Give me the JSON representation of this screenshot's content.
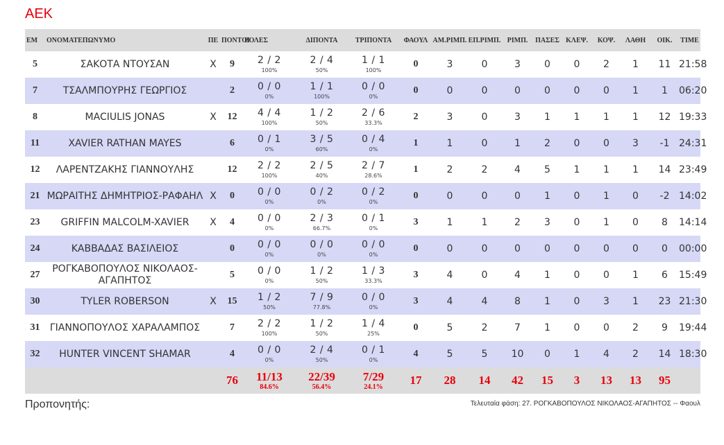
{
  "team": "ΑΕΚ",
  "headers": {
    "em": "ΕΜ",
    "name": "ΟΝΟΜΑΤΕΠΩΝΥΜΟ",
    "pe": "ΠΕ",
    "points": "ΠΟΝΤΟΙ",
    "shots": "ΒΟΛΕΣ",
    "two": "ΔΙΠΟΝΤΑ",
    "three": "ΤΡΙΠΟΝΤΑ",
    "fouls": "ΦΑΟΥΛ",
    "def_reb": "ΑΜ.ΡΙΜΠ.",
    "off_reb": "ΕΠ.ΡΙΜΠ.",
    "reb": "ΡΙΜΠ.",
    "assists": "ΠΑΣΕΣ",
    "steals": "ΚΛΕΨ.",
    "blocks": "ΚΟΨ.",
    "turnovers": "ΛΑΘΗ",
    "oik": "ΟΙΚ.",
    "time": "TIME"
  },
  "players": [
    {
      "no": "5",
      "name": "ΣΑΚΟΤΑ ΝΤΟΥΣΑΝ",
      "starter": "X",
      "pts": "9",
      "ft": "2 / 2",
      "ft_pct": "100%",
      "fg2": "2 / 4",
      "fg2_pct": "50%",
      "fg3": "1 / 1",
      "fg3_pct": "100%",
      "fouls": "0",
      "dreb": "3",
      "oreb": "0",
      "reb": "3",
      "ast": "0",
      "stl": "0",
      "blk": "2",
      "to": "1",
      "oik": "11",
      "time": "21:58"
    },
    {
      "no": "7",
      "name": "ΤΣΑΛΜΠΟΥΡΗΣ ΓΕΩΡΓΙΟΣ",
      "starter": "",
      "pts": "2",
      "ft": "0 / 0",
      "ft_pct": "0%",
      "fg2": "1 / 1",
      "fg2_pct": "100%",
      "fg3": "0 / 0",
      "fg3_pct": "0%",
      "fouls": "0",
      "dreb": "0",
      "oreb": "0",
      "reb": "0",
      "ast": "0",
      "stl": "0",
      "blk": "0",
      "to": "1",
      "oik": "1",
      "time": "06:20"
    },
    {
      "no": "8",
      "name": "MACIULIS JONAS",
      "starter": "X",
      "pts": "12",
      "ft": "4 / 4",
      "ft_pct": "100%",
      "fg2": "1 / 2",
      "fg2_pct": "50%",
      "fg3": "2 / 6",
      "fg3_pct": "33.3%",
      "fouls": "2",
      "dreb": "3",
      "oreb": "0",
      "reb": "3",
      "ast": "1",
      "stl": "1",
      "blk": "1",
      "to": "1",
      "oik": "12",
      "time": "19:33"
    },
    {
      "no": "11",
      "name": "XAVIER RATHAN MAYES",
      "starter": "",
      "pts": "6",
      "ft": "0 / 1",
      "ft_pct": "0%",
      "fg2": "3 / 5",
      "fg2_pct": "60%",
      "fg3": "0 / 4",
      "fg3_pct": "0%",
      "fouls": "1",
      "dreb": "1",
      "oreb": "0",
      "reb": "1",
      "ast": "2",
      "stl": "0",
      "blk": "0",
      "to": "3",
      "oik": "-1",
      "time": "24:31"
    },
    {
      "no": "12",
      "name": "ΛΑΡΕΝΤΖΑΚΗΣ ΓΙΑΝΝΟΥΛΗΣ",
      "starter": "",
      "pts": "12",
      "ft": "2 / 2",
      "ft_pct": "100%",
      "fg2": "2 / 5",
      "fg2_pct": "40%",
      "fg3": "2 / 7",
      "fg3_pct": "28.6%",
      "fouls": "1",
      "dreb": "2",
      "oreb": "2",
      "reb": "4",
      "ast": "5",
      "stl": "1",
      "blk": "1",
      "to": "1",
      "oik": "14",
      "time": "23:49"
    },
    {
      "no": "21",
      "name": "ΜΩΡΑΙΤΗΣ ΔΗΜΗΤΡΙΟΣ-ΡΑΦΑΗΛ",
      "starter": "X",
      "pts": "0",
      "ft": "0 / 0",
      "ft_pct": "0%",
      "fg2": "0 / 2",
      "fg2_pct": "0%",
      "fg3": "0 / 2",
      "fg3_pct": "0%",
      "fouls": "0",
      "dreb": "0",
      "oreb": "0",
      "reb": "0",
      "ast": "1",
      "stl": "0",
      "blk": "1",
      "to": "0",
      "oik": "-2",
      "time": "14:02"
    },
    {
      "no": "23",
      "name": "GRIFFIN MALCOLM-XAVIER",
      "starter": "X",
      "pts": "4",
      "ft": "0 / 0",
      "ft_pct": "0%",
      "fg2": "2 / 3",
      "fg2_pct": "66.7%",
      "fg3": "0 / 1",
      "fg3_pct": "0%",
      "fouls": "3",
      "dreb": "1",
      "oreb": "1",
      "reb": "2",
      "ast": "3",
      "stl": "0",
      "blk": "1",
      "to": "0",
      "oik": "8",
      "time": "14:14"
    },
    {
      "no": "24",
      "name": "ΚΑΒΒΑΔΑΣ ΒΑΣΙΛΕΙΟΣ",
      "starter": "",
      "pts": "0",
      "ft": "0 / 0",
      "ft_pct": "0%",
      "fg2": "0 / 0",
      "fg2_pct": "0%",
      "fg3": "0 / 0",
      "fg3_pct": "0%",
      "fouls": "0",
      "dreb": "0",
      "oreb": "0",
      "reb": "0",
      "ast": "0",
      "stl": "0",
      "blk": "0",
      "to": "0",
      "oik": "0",
      "time": "00:00"
    },
    {
      "no": "27",
      "name": "ΡΟΓΚΑΒΟΠΟΥΛΟΣ ΝΙΚΟΛΑΟΣ-ΑΓΑΠΗΤΟΣ",
      "starter": "",
      "pts": "5",
      "ft": "0 / 0",
      "ft_pct": "0%",
      "fg2": "1 / 2",
      "fg2_pct": "50%",
      "fg3": "1 / 3",
      "fg3_pct": "33.3%",
      "fouls": "3",
      "dreb": "4",
      "oreb": "0",
      "reb": "4",
      "ast": "1",
      "stl": "0",
      "blk": "0",
      "to": "1",
      "oik": "6",
      "time": "15:49"
    },
    {
      "no": "30",
      "name": "TYLER ROBERSON",
      "starter": "X",
      "pts": "15",
      "ft": "1 / 2",
      "ft_pct": "50%",
      "fg2": "7 / 9",
      "fg2_pct": "77.8%",
      "fg3": "0 / 0",
      "fg3_pct": "0%",
      "fouls": "3",
      "dreb": "4",
      "oreb": "4",
      "reb": "8",
      "ast": "1",
      "stl": "0",
      "blk": "3",
      "to": "1",
      "oik": "23",
      "time": "21:30"
    },
    {
      "no": "31",
      "name": "ΓΙΑΝΝΟΠΟΥΛΟΣ ΧΑΡΑΛΑΜΠΟΣ",
      "starter": "",
      "pts": "7",
      "ft": "2 / 2",
      "ft_pct": "100%",
      "fg2": "1 / 2",
      "fg2_pct": "50%",
      "fg3": "1 / 4",
      "fg3_pct": "25%",
      "fouls": "0",
      "dreb": "5",
      "oreb": "2",
      "reb": "7",
      "ast": "1",
      "stl": "0",
      "blk": "0",
      "to": "2",
      "oik": "9",
      "time": "19:44"
    },
    {
      "no": "32",
      "name": "HUNTER VINCENT SHAMAR",
      "starter": "",
      "pts": "4",
      "ft": "0 / 0",
      "ft_pct": "0%",
      "fg2": "2 / 4",
      "fg2_pct": "50%",
      "fg3": "0 / 1",
      "fg3_pct": "0%",
      "fouls": "4",
      "dreb": "5",
      "oreb": "5",
      "reb": "10",
      "ast": "0",
      "stl": "1",
      "blk": "4",
      "to": "2",
      "oik": "14",
      "time": "18:30"
    }
  ],
  "totals": {
    "pts": "76",
    "ft": "11/13",
    "ft_pct": "84.6%",
    "fg2": "22/39",
    "fg2_pct": "56.4%",
    "fg3": "7/29",
    "fg3_pct": "24.1%",
    "fouls": "17",
    "dreb": "28",
    "oreb": "14",
    "reb": "42",
    "ast": "15",
    "stl": "3",
    "blk": "13",
    "to": "13",
    "oik": "95"
  },
  "coach_label": "Προπονητής:",
  "last_phase": "Τελευταία φάση: 27. ΡΟΓΚΑΒΟΠΟΥΛΟΣ ΝΙΚΟΛΑΟΣ-ΑΓΑΠΗΤΟΣ -- Φαουλ",
  "colors": {
    "accent": "#e8000b",
    "name": "#c0391b",
    "stripe": "#d6d8f6",
    "header": "#dcdcdc"
  }
}
